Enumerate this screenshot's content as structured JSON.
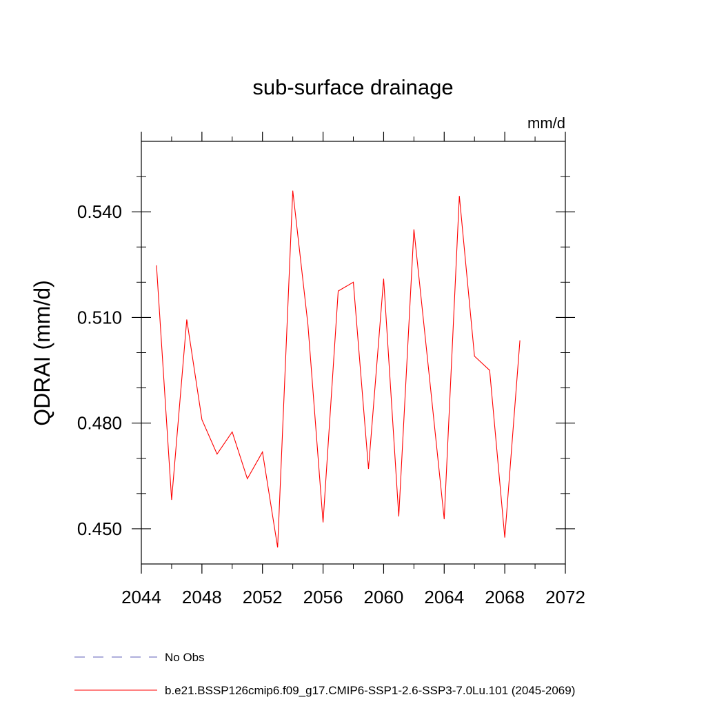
{
  "chart_data": {
    "type": "line",
    "title": "sub-surface drainage",
    "units": "mm/d",
    "ylabel": "QDRAI  (mm/d)",
    "xlabel": "",
    "xlim": [
      2044,
      2072
    ],
    "ylim": [
      0.44,
      0.56
    ],
    "x_ticks": [
      2044,
      2048,
      2052,
      2056,
      2060,
      2064,
      2068,
      2072
    ],
    "x_tick_labels": [
      "2044",
      "2048",
      "2052",
      "2056",
      "2060",
      "2064",
      "2068",
      "2072"
    ],
    "x_minor_step": 2,
    "y_ticks": [
      0.45,
      0.48,
      0.51,
      0.54
    ],
    "y_tick_labels": [
      "0.450",
      "0.480",
      "0.510",
      "0.540"
    ],
    "y_minor_step": 0.01,
    "x": [
      2045,
      2046,
      2047,
      2048,
      2049,
      2050,
      2051,
      2052,
      2053,
      2054,
      2055,
      2056,
      2057,
      2058,
      2059,
      2060,
      2061,
      2062,
      2063,
      2064,
      2065,
      2066,
      2067,
      2068,
      2069
    ],
    "series": [
      {
        "name": "b.e21.BSSP126cmip6.f09_g17.CMIP6-SSP1-2.6-SSP3-7.0Lu.101 (2045-2069)",
        "color": "#ff0000",
        "style": "solid",
        "values": [
          0.5248,
          0.4582,
          0.5094,
          0.481,
          0.4712,
          0.4775,
          0.4642,
          0.4718,
          0.4447,
          0.546,
          0.508,
          0.4518,
          0.5175,
          0.52,
          0.467,
          0.521,
          0.4535,
          0.535,
          0.494,
          0.4527,
          0.5445,
          0.499,
          0.495,
          0.4475,
          0.5035
        ]
      }
    ],
    "legend": [
      {
        "label": "No Obs",
        "color": "#5c5cb8",
        "style": "dashed"
      },
      {
        "label": "b.e21.BSSP126cmip6.f09_g17.CMIP6-SSP1-2.6-SSP3-7.0Lu.101 (2045-2069)",
        "color": "#ff0000",
        "style": "solid"
      }
    ],
    "legend_position": "bottom",
    "grid": false
  }
}
